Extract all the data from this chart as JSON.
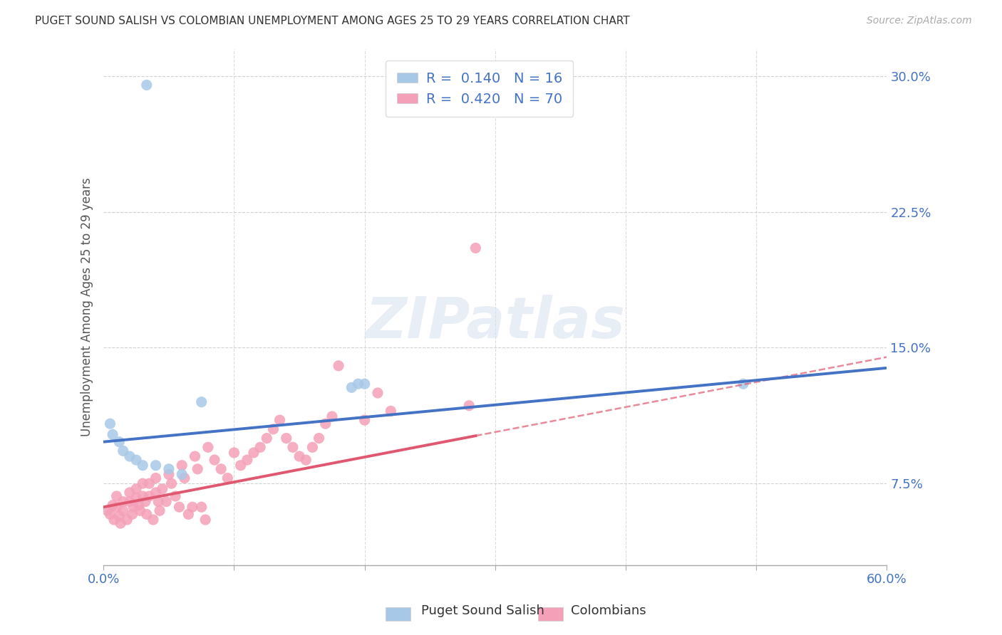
{
  "title": "PUGET SOUND SALISH VS COLOMBIAN UNEMPLOYMENT AMONG AGES 25 TO 29 YEARS CORRELATION CHART",
  "source": "Source: ZipAtlas.com",
  "ylabel_label": "Unemployment Among Ages 25 to 29 years",
  "xlabel_label_salish": "Puget Sound Salish",
  "xlabel_label_colombian": "Colombians",
  "xlim": [
    0.0,
    0.6
  ],
  "ylim": [
    0.03,
    0.315
  ],
  "yticks": [
    0.075,
    0.15,
    0.225,
    0.3
  ],
  "xtick_show": [
    0.0,
    0.6
  ],
  "xtick_minor": [
    0.1,
    0.2,
    0.3,
    0.4,
    0.5
  ],
  "r_salish": 0.14,
  "n_salish": 16,
  "r_colombian": 0.42,
  "n_colombian": 70,
  "salish_color": "#a8c8e8",
  "colombian_color": "#f4a0b8",
  "salish_line_color": "#4472c4",
  "colombian_line_color": "#e05870",
  "salish_line_intercept": 0.098,
  "salish_line_slope": 0.068,
  "colombian_line_intercept": 0.062,
  "colombian_line_slope": 0.138,
  "salish_x": [
    0.007,
    0.005,
    0.012,
    0.015,
    0.02,
    0.025,
    0.03,
    0.04,
    0.05,
    0.06,
    0.075,
    0.19,
    0.195,
    0.2,
    0.49,
    0.033
  ],
  "salish_y": [
    0.102,
    0.108,
    0.098,
    0.093,
    0.09,
    0.088,
    0.085,
    0.085,
    0.083,
    0.08,
    0.12,
    0.128,
    0.13,
    0.13,
    0.13,
    0.295
  ],
  "colombian_x": [
    0.003,
    0.005,
    0.007,
    0.008,
    0.01,
    0.01,
    0.012,
    0.013,
    0.015,
    0.015,
    0.018,
    0.02,
    0.02,
    0.022,
    0.023,
    0.025,
    0.025,
    0.027,
    0.028,
    0.03,
    0.03,
    0.032,
    0.033,
    0.035,
    0.035,
    0.038,
    0.04,
    0.04,
    0.042,
    0.043,
    0.045,
    0.048,
    0.05,
    0.052,
    0.055,
    0.058,
    0.06,
    0.062,
    0.065,
    0.068,
    0.07,
    0.072,
    0.075,
    0.078,
    0.08,
    0.085,
    0.09,
    0.095,
    0.1,
    0.105,
    0.11,
    0.115,
    0.12,
    0.125,
    0.13,
    0.135,
    0.14,
    0.145,
    0.15,
    0.155,
    0.16,
    0.165,
    0.17,
    0.175,
    0.18,
    0.2,
    0.21,
    0.22,
    0.28,
    0.285
  ],
  "colombian_y": [
    0.06,
    0.058,
    0.063,
    0.055,
    0.062,
    0.068,
    0.057,
    0.053,
    0.065,
    0.06,
    0.055,
    0.07,
    0.065,
    0.058,
    0.062,
    0.072,
    0.067,
    0.063,
    0.06,
    0.075,
    0.068,
    0.065,
    0.058,
    0.075,
    0.068,
    0.055,
    0.078,
    0.07,
    0.065,
    0.06,
    0.072,
    0.065,
    0.08,
    0.075,
    0.068,
    0.062,
    0.085,
    0.078,
    0.058,
    0.062,
    0.09,
    0.083,
    0.062,
    0.055,
    0.095,
    0.088,
    0.083,
    0.078,
    0.092,
    0.085,
    0.088,
    0.092,
    0.095,
    0.1,
    0.105,
    0.11,
    0.1,
    0.095,
    0.09,
    0.088,
    0.095,
    0.1,
    0.108,
    0.112,
    0.14,
    0.11,
    0.125,
    0.115,
    0.118,
    0.205
  ]
}
